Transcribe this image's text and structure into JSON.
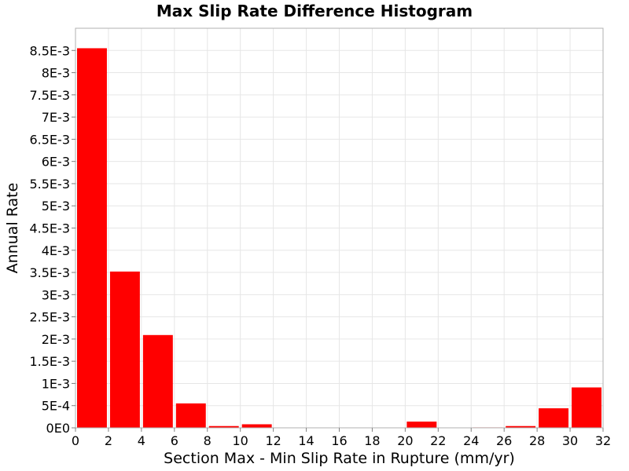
{
  "chart_data": {
    "type": "bar",
    "title": "Max Slip Rate Difference Histogram",
    "xlabel": "Section Max - Min Slip Rate in Rupture (mm/yr)",
    "ylabel": "Annual Rate",
    "xlim": [
      0,
      32
    ],
    "ylim": [
      0,
      0.009
    ],
    "bin_width": 2,
    "x": [
      1,
      3,
      5,
      7,
      9,
      11,
      13,
      15,
      17,
      19,
      21,
      23,
      25,
      27,
      29,
      31
    ],
    "values": [
      0.00855,
      0.00352,
      0.00209,
      0.00055,
      4e-05,
      8e-05,
      0.0,
      0.0,
      0.0,
      0.0,
      0.00014,
      0.0,
      1e-05,
      4e-05,
      0.00044,
      0.00091
    ],
    "x_ticks": [
      "0",
      "2",
      "4",
      "6",
      "8",
      "10",
      "12",
      "14",
      "16",
      "18",
      "20",
      "22",
      "24",
      "26",
      "28",
      "30",
      "32"
    ],
    "y_ticks": [
      "0E0",
      "5E-4",
      "1E-3",
      "1.5E-3",
      "2E-3",
      "2.5E-3",
      "3E-3",
      "3.5E-3",
      "4E-3",
      "4.5E-3",
      "5E-3",
      "5.5E-3",
      "6E-3",
      "6.5E-3",
      "7E-3",
      "7.5E-3",
      "8E-3",
      "8.5E-3"
    ],
    "grid": true,
    "colors": {
      "bar": "#ff0000",
      "grid": "#e6e6e6",
      "border": "#b0b0b0"
    }
  }
}
